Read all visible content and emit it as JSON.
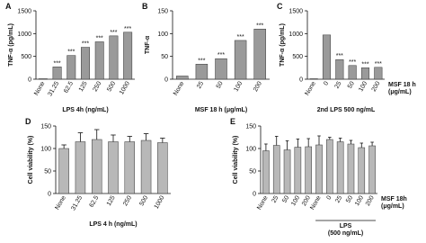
{
  "chart_data": [
    {
      "type": "bar",
      "panel": "A",
      "y_label": "TNF-α (pg/mL)",
      "x_label": "LPS 4h (ng/mL)",
      "color": "#9a9a9a",
      "categories": [
        "None",
        "31.25",
        "62.5",
        "125",
        "250",
        "500",
        "1000"
      ],
      "values": [
        10,
        270,
        520,
        700,
        820,
        950,
        1030
      ],
      "significance": [
        null,
        "***",
        "***",
        "***",
        "***",
        "***",
        "***"
      ],
      "ylim": [
        0,
        1500
      ],
      "yticks": [
        0,
        500,
        1000,
        1500
      ]
    },
    {
      "type": "bar",
      "panel": "B",
      "y_label": "TNF-α",
      "x_label": "MSF 18 h (μg/mL)",
      "color": "#9a9a9a",
      "categories": [
        "None",
        "25",
        "50",
        "100",
        "200"
      ],
      "values": [
        7,
        33,
        45,
        85,
        110
      ],
      "significance": [
        null,
        "***",
        "***",
        "***",
        "***"
      ],
      "ylim": [
        0,
        150
      ],
      "yticks": [
        0,
        50,
        100,
        150
      ]
    },
    {
      "type": "bar",
      "panel": "C",
      "y_label": "TNF-α (pg/mL)",
      "x_label": "2nd LPS 500 ng/mL",
      "series_label": [
        "MSF 18 h",
        "(μg/mL)"
      ],
      "color": "#9a9a9a",
      "categories": [
        "None",
        "0",
        "25",
        "50",
        "100",
        "200"
      ],
      "values": [
        10,
        970,
        430,
        300,
        250,
        260
      ],
      "significance": [
        null,
        null,
        "***",
        "***",
        "***",
        "***"
      ],
      "ylim": [
        0,
        1500
      ],
      "yticks": [
        0,
        500,
        1000,
        1500
      ]
    },
    {
      "type": "bar",
      "panel": "D",
      "y_label": "Cell viability (%)",
      "x_label": "LPS 4 h  (ng/mL)",
      "color": "#b8b8b8",
      "categories": [
        "None",
        "31.25",
        "62.5",
        "125",
        "250",
        "500",
        "1000"
      ],
      "values": [
        100,
        115,
        120,
        115,
        115,
        118,
        113
      ],
      "errors": [
        8,
        20,
        22,
        15,
        12,
        15,
        10
      ],
      "ylim": [
        0,
        150
      ],
      "yticks": [
        0,
        50,
        100,
        150
      ]
    },
    {
      "type": "bar",
      "panel": "E",
      "y_label": "Cell viability (%)",
      "series_label": [
        "MSF 18h",
        "(μg/mL)"
      ],
      "group_label": [
        "LPS",
        "(500 ng/mL)"
      ],
      "color": "#b8b8b8",
      "categories": [
        "None",
        "25",
        "50",
        "100",
        "200",
        "None",
        "0",
        "25",
        "50",
        "100",
        "200"
      ],
      "values": [
        95,
        107,
        97,
        103,
        104,
        108,
        120,
        115,
        110,
        102,
        106
      ],
      "errors": [
        15,
        20,
        20,
        18,
        18,
        20,
        5,
        8,
        8,
        10,
        8
      ],
      "ylim": [
        0,
        150
      ],
      "yticks": [
        0,
        50,
        100,
        150
      ]
    }
  ]
}
